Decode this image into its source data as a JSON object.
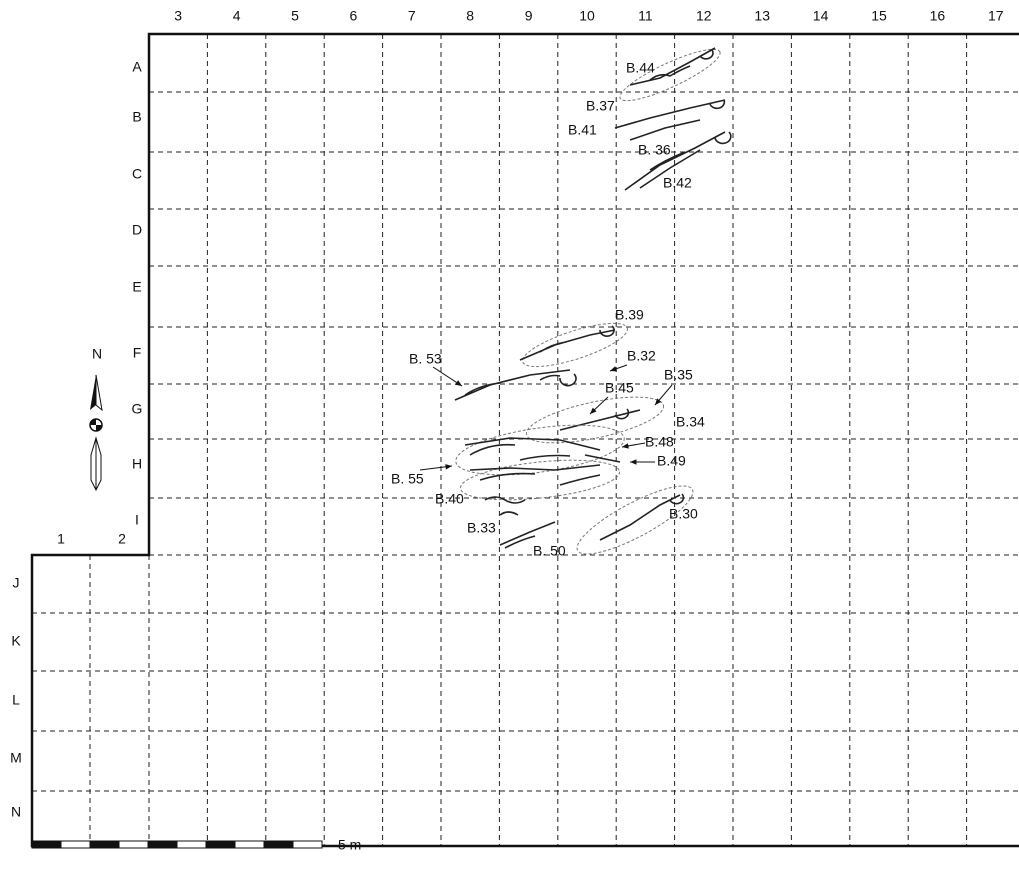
{
  "columns": [
    "1",
    "2",
    "3",
    "4",
    "5",
    "6",
    "7",
    "8",
    "9",
    "10",
    "11",
    "12",
    "13",
    "14",
    "15",
    "16",
    "17"
  ],
  "rows": [
    "A",
    "B",
    "C",
    "D",
    "E",
    "F",
    "G",
    "H",
    "I",
    "J",
    "K",
    "L",
    "M",
    "N"
  ],
  "burials": [
    "B.44",
    "B.37",
    "B.41",
    "B. 36",
    "B.42",
    "B.39",
    "B.32",
    "B. 53",
    "B.35",
    "B.45",
    "B.34",
    "B.48",
    "B.49",
    "B. 55",
    "B.40",
    "B.30",
    "B.33",
    "B. 50"
  ],
  "north": "N",
  "scale": "5 m"
}
